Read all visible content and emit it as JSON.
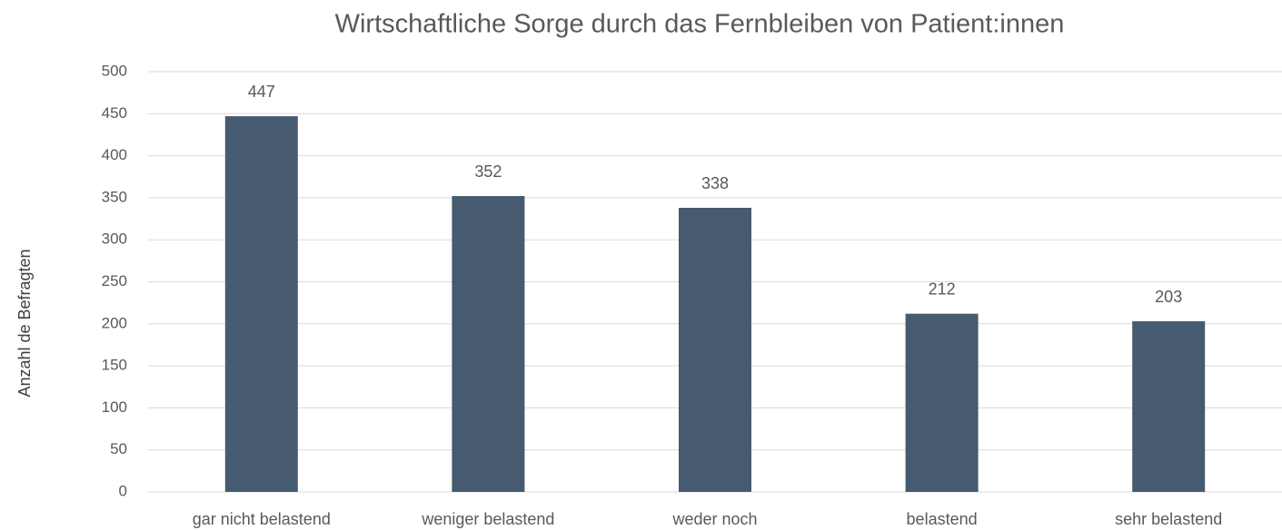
{
  "chart_data": {
    "type": "bar",
    "title": "Wirtschaftliche Sorge durch das Fernbleiben von Patient:innen",
    "y_label": "Anzahl de Befragten",
    "categories": [
      "gar nicht belastend",
      "weniger belastend",
      "weder noch",
      "belastend",
      "sehr belastend"
    ],
    "values": [
      447,
      352,
      338,
      212,
      203
    ],
    "color": "#465a70",
    "ylim": [
      0,
      500
    ],
    "yticks": [
      0,
      50,
      100,
      150,
      200,
      250,
      300,
      350,
      400,
      450,
      500
    ],
    "grid": true,
    "data_labels": true
  }
}
